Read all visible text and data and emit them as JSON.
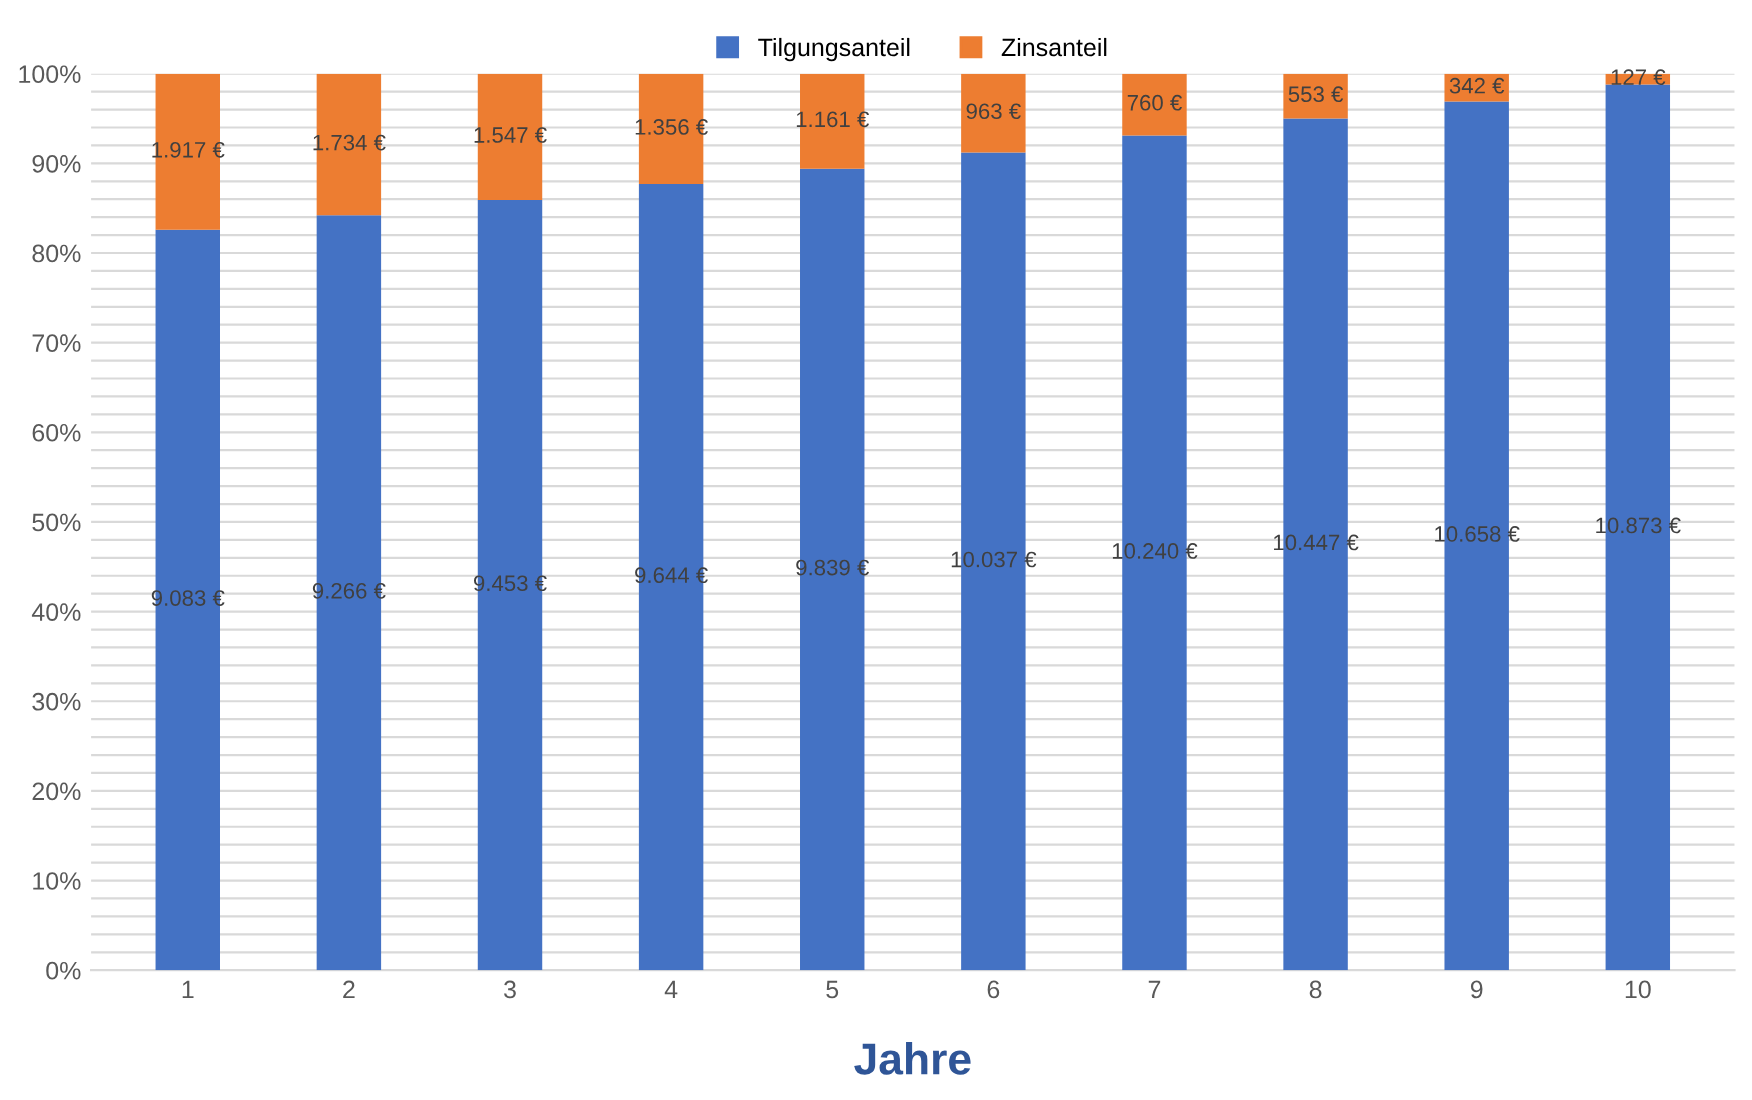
{
  "chart_data": {
    "type": "bar",
    "stacked": true,
    "xlabel": "Jahre",
    "categories": [
      "1",
      "2",
      "3",
      "4",
      "5",
      "6",
      "7",
      "8",
      "9",
      "10"
    ],
    "series": [
      {
        "name": "Tilgungsanteil",
        "color": "#4472c4",
        "values": [
          82.6,
          84.2,
          85.9,
          87.7,
          89.4,
          91.2,
          93.1,
          95.0,
          96.9,
          98.8
        ]
      },
      {
        "name": "Zinsanteil",
        "color": "#ed7d31",
        "values": [
          17.4,
          15.8,
          14.1,
          12.3,
          10.6,
          8.8,
          6.9,
          5.0,
          3.1,
          1.2
        ]
      }
    ],
    "annotations": [
      "9.083 €",
      "9.266 €",
      "9.453 €",
      "9.644 €",
      "9.839 €",
      "10.037 €",
      "10.240 €",
      "10.447 €",
      "10.658 €",
      "10.873 €",
      "1.917 €",
      "1.734 €",
      "1.547 €",
      "1.356 €",
      "1.161 €",
      "963 €",
      "760 €",
      "553 €",
      "342 €",
      "127 €"
    ],
    "ylim": [
      0,
      100
    ],
    "yticks": [
      {
        "value": 0,
        "label": "0%"
      },
      {
        "value": 2,
        "label": null
      },
      {
        "value": 4,
        "label": null
      },
      {
        "value": 6,
        "label": null
      },
      {
        "value": 8,
        "label": null
      },
      {
        "value": 10,
        "label": "10%"
      },
      {
        "value": 12,
        "label": null
      },
      {
        "value": 14,
        "label": null
      },
      {
        "value": 16,
        "label": null
      },
      {
        "value": 18,
        "label": null
      },
      {
        "value": 20,
        "label": "20%"
      },
      {
        "value": 22,
        "label": null
      },
      {
        "value": 24,
        "label": null
      },
      {
        "value": 26,
        "label": null
      },
      {
        "value": 28,
        "label": null
      },
      {
        "value": 30,
        "label": "30%"
      },
      {
        "value": 32,
        "label": null
      },
      {
        "value": 34,
        "label": null
      },
      {
        "value": 36,
        "label": null
      },
      {
        "value": 38,
        "label": null
      },
      {
        "value": 40,
        "label": "40%"
      },
      {
        "value": 42,
        "label": null
      },
      {
        "value": 44,
        "label": null
      },
      {
        "value": 46,
        "label": null
      },
      {
        "value": 48,
        "label": null
      },
      {
        "value": 50,
        "label": "50%"
      },
      {
        "value": 52,
        "label": null
      },
      {
        "value": 54,
        "label": null
      },
      {
        "value": 56,
        "label": null
      },
      {
        "value": 58,
        "label": null
      },
      {
        "value": 60,
        "label": "60%"
      },
      {
        "value": 62,
        "label": null
      },
      {
        "value": 64,
        "label": null
      },
      {
        "value": 66,
        "label": null
      },
      {
        "value": 68,
        "label": null
      },
      {
        "value": 70,
        "label": "70%"
      },
      {
        "value": 72,
        "label": null
      },
      {
        "value": 74,
        "label": null
      },
      {
        "value": 76,
        "label": null
      },
      {
        "value": 78,
        "label": null
      },
      {
        "value": 80,
        "label": "80%"
      },
      {
        "value": 82,
        "label": null
      },
      {
        "value": 84,
        "label": null
      },
      {
        "value": 86,
        "label": null
      },
      {
        "value": 88,
        "label": null
      },
      {
        "value": 90,
        "label": "90%"
      },
      {
        "value": 92,
        "label": null
      },
      {
        "value": 94,
        "label": null
      },
      {
        "value": 96,
        "label": null
      },
      {
        "value": 98,
        "label": null
      },
      {
        "value": 100,
        "label": "100%"
      }
    ],
    "grid": "y",
    "legend": "top"
  }
}
